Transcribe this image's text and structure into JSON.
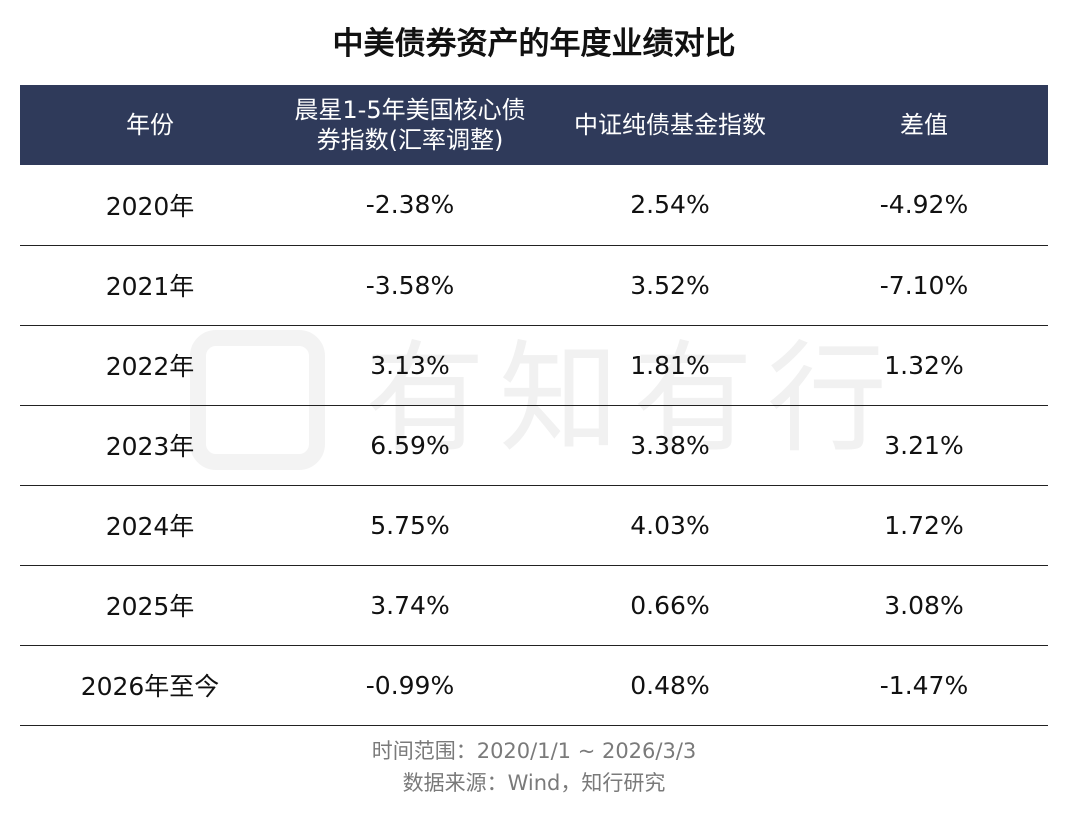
{
  "title": "中美债券资产的年度业绩对比",
  "watermark": {
    "text": "有知有行"
  },
  "colors": {
    "header_bg": "#2f3a5a",
    "negative": "#3e9a35",
    "positive": "#b0181e"
  },
  "table": {
    "headers": [
      "年份",
      "晨星1-5年美国核心债券指数(汇率调整)",
      "中证纯债基金指数",
      "差值"
    ],
    "rows": [
      {
        "year": "2020年",
        "morningstar": "-2.38%",
        "csi": "2.54%",
        "diff": "-4.92%",
        "diff_sign": "neg"
      },
      {
        "year": "2021年",
        "morningstar": "-3.58%",
        "csi": "3.52%",
        "diff": "-7.10%",
        "diff_sign": "neg"
      },
      {
        "year": "2022年",
        "morningstar": "3.13%",
        "csi": "1.81%",
        "diff": "1.32%",
        "diff_sign": "pos"
      },
      {
        "year": "2023年",
        "morningstar": "6.59%",
        "csi": "3.38%",
        "diff": "3.21%",
        "diff_sign": "pos"
      },
      {
        "year": "2024年",
        "morningstar": "5.75%",
        "csi": "4.03%",
        "diff": "1.72%",
        "diff_sign": "pos"
      },
      {
        "year": "2025年",
        "morningstar": "3.74%",
        "csi": "0.66%",
        "diff": "3.08%",
        "diff_sign": "pos"
      },
      {
        "year": "2026年至今",
        "morningstar": "-0.99%",
        "csi": "0.48%",
        "diff": "-1.47%",
        "diff_sign": "neg"
      }
    ]
  },
  "footer": {
    "time_range": "时间范围：2020/1/1 ~ 2026/3/3",
    "source": "数据来源：Wind，知行研究"
  }
}
